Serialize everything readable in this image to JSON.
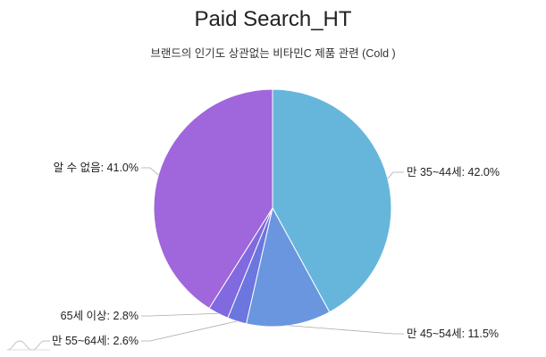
{
  "chart_data": {
    "type": "pie",
    "title": "Paid Search_HT",
    "subtitle": "브랜드의 인기도 상관없는 비타민C 제품 관련 (Cold )",
    "slices": [
      {
        "label": "만 35~44세",
        "value": 42.0,
        "display": "만 35~44세: 42.0%",
        "color": "#66b6dc"
      },
      {
        "label": "만 45~54세",
        "value": 11.5,
        "display": "만 45~54세: 11.5%",
        "color": "#6a96df"
      },
      {
        "label": "만 55~64세",
        "value": 2.6,
        "display": "만 55~64세: 2.6%",
        "color": "#6b76df"
      },
      {
        "label": "65세 이상",
        "value": 2.8,
        "display": "65세 이상: 2.8%",
        "color": "#8169df"
      },
      {
        "label": "알 수 없음",
        "value": 41.0,
        "display": "알 수 없음: 41.0%",
        "color": "#a066db"
      }
    ]
  }
}
